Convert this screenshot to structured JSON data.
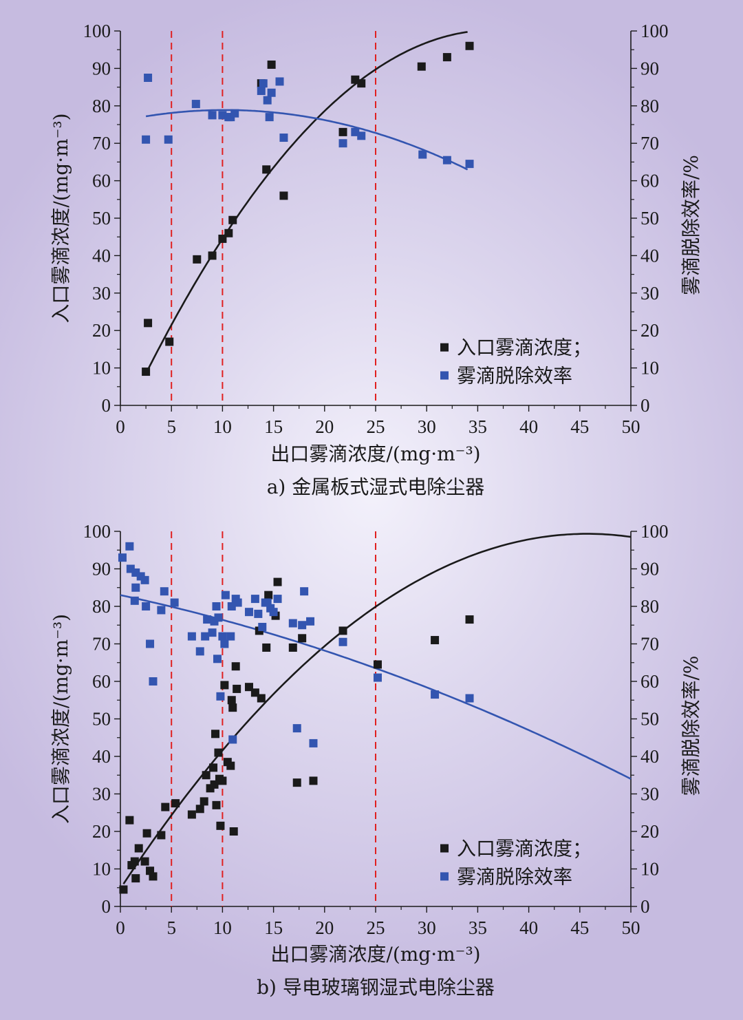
{
  "colors": {
    "series_inlet": "#1a1a1a",
    "series_efficiency": "#3355b0",
    "reference_line": "#e02020"
  },
  "chart_data": [
    {
      "type": "scatter",
      "caption": "a) 金属板式湿式电除尘器",
      "xlabel": "出口雾滴浓度/(mg·m⁻³)",
      "ylabel_left": "入口雾滴浓度/(mg·m⁻³)",
      "ylabel_right": "雾滴脱除效率/%",
      "xlim": [
        0,
        50
      ],
      "ylim": [
        0,
        100
      ],
      "x_ticks": [
        "0",
        "5",
        "10",
        "15",
        "20",
        "25",
        "30",
        "35",
        "40",
        "45",
        "50"
      ],
      "y_ticks": [
        "0",
        "10",
        "20",
        "30",
        "40",
        "50",
        "60",
        "70",
        "80",
        "90",
        "100"
      ],
      "reference_lines_x": [
        5,
        10,
        25
      ],
      "legend": {
        "items": [
          "入口雾滴浓度；",
          "雾滴脱除效率"
        ],
        "position": "bottom-right"
      },
      "series": [
        {
          "name": "入口雾滴浓度；",
          "color": "#1a1a1a",
          "points": [
            [
              2.5,
              9
            ],
            [
              2.7,
              22
            ],
            [
              4.8,
              17
            ],
            [
              7.5,
              39
            ],
            [
              9,
              40
            ],
            [
              10,
              44.5
            ],
            [
              10.6,
              46
            ],
            [
              11,
              49.5
            ],
            [
              13.8,
              86
            ],
            [
              14.3,
              63
            ],
            [
              14.8,
              91
            ],
            [
              16,
              56
            ],
            [
              21.8,
              73
            ],
            [
              23,
              87
            ],
            [
              23.6,
              86
            ],
            [
              29.5,
              90.5
            ],
            [
              32,
              93
            ],
            [
              34.2,
              96
            ]
          ],
          "fit": {
            "type": "quadratic",
            "x_range": [
              2.5,
              34
            ],
            "through": [
              [
                2.5,
                8.5
              ],
              [
                10,
                44.5
              ],
              [
                28,
                94.5
              ]
            ]
          }
        },
        {
          "name": "雾滴脱除效率",
          "color": "#3355b0",
          "points": [
            [
              2.5,
              71
            ],
            [
              2.7,
              87.5
            ],
            [
              4.7,
              71
            ],
            [
              7.4,
              80.5
            ],
            [
              9,
              77.5
            ],
            [
              10,
              77.5
            ],
            [
              10.6,
              77
            ],
            [
              10.8,
              77
            ],
            [
              11.2,
              78
            ],
            [
              13.8,
              84
            ],
            [
              14,
              86
            ],
            [
              14.4,
              81.5
            ],
            [
              14.6,
              77
            ],
            [
              14.8,
              83.5
            ],
            [
              15.6,
              86.5
            ],
            [
              16,
              71.5
            ],
            [
              21.8,
              70
            ],
            [
              23,
              73
            ],
            [
              23.6,
              72
            ],
            [
              29.6,
              67
            ],
            [
              32,
              65.5
            ],
            [
              34.2,
              64.5
            ]
          ],
          "fit": {
            "type": "quadratic",
            "x_range": [
              2.5,
              34
            ],
            "through": [
              [
                2.5,
                77.2
              ],
              [
                12,
                78.8
              ],
              [
                34,
                63
              ]
            ]
          }
        }
      ]
    },
    {
      "type": "scatter",
      "caption": "b) 导电玻璃钢湿式电除尘器",
      "xlabel": "出口雾滴浓度/(mg·m⁻³)",
      "ylabel_left": "入口雾滴浓度/(mg·m⁻³)",
      "ylabel_right": "雾滴脱除效率/%",
      "xlim": [
        0,
        50
      ],
      "ylim": [
        0,
        100
      ],
      "x_ticks": [
        "0",
        "5",
        "10",
        "15",
        "20",
        "25",
        "30",
        "35",
        "40",
        "45",
        "50"
      ],
      "y_ticks": [
        "0",
        "10",
        "20",
        "30",
        "40",
        "50",
        "60",
        "70",
        "80",
        "90",
        "100"
      ],
      "reference_lines_x": [
        5,
        10,
        25
      ],
      "legend": {
        "items": [
          "入口雾滴浓度；",
          "雾滴脱除效率"
        ],
        "position": "bottom-right"
      },
      "series": [
        {
          "name": "入口雾滴浓度；",
          "color": "#1a1a1a",
          "points": [
            [
              0.3,
              4.5
            ],
            [
              0.9,
              23
            ],
            [
              1.1,
              11
            ],
            [
              1.4,
              12
            ],
            [
              1.5,
              7.5
            ],
            [
              1.8,
              15.5
            ],
            [
              2.4,
              12
            ],
            [
              2.6,
              19.5
            ],
            [
              2.9,
              9.5
            ],
            [
              3.2,
              8
            ],
            [
              4,
              19
            ],
            [
              4.4,
              26.5
            ],
            [
              5.4,
              27.5
            ],
            [
              7,
              24.5
            ],
            [
              7.8,
              26
            ],
            [
              8.2,
              28
            ],
            [
              8.4,
              35
            ],
            [
              8.8,
              31.5
            ],
            [
              9.1,
              37
            ],
            [
              9.2,
              32.5
            ],
            [
              9.3,
              46
            ],
            [
              9.4,
              27
            ],
            [
              9.6,
              41
            ],
            [
              9.7,
              34
            ],
            [
              9.8,
              21.5
            ],
            [
              10,
              33.5
            ],
            [
              10.2,
              59
            ],
            [
              10.5,
              38.5
            ],
            [
              10.8,
              37.5
            ],
            [
              10.9,
              55
            ],
            [
              11,
              53
            ],
            [
              11.1,
              20
            ],
            [
              11.3,
              64
            ],
            [
              11.4,
              58
            ],
            [
              12.6,
              58.5
            ],
            [
              13.2,
              57
            ],
            [
              13.6,
              73.5
            ],
            [
              13.8,
              55.5
            ],
            [
              14.3,
              69
            ],
            [
              14.5,
              83
            ],
            [
              15.2,
              77.5
            ],
            [
              15.4,
              86.5
            ],
            [
              16.9,
              69
            ],
            [
              17.3,
              33
            ],
            [
              17.8,
              71.5
            ],
            [
              18.9,
              33.5
            ],
            [
              21.8,
              73.5
            ],
            [
              25.2,
              64.5
            ],
            [
              30.8,
              71
            ],
            [
              34.2,
              76.5
            ]
          ],
          "fit": {
            "type": "quadratic",
            "x_range": [
              0.3,
              50
            ],
            "through": [
              [
                0.3,
                6
              ],
              [
                10,
                41.6
              ],
              [
                43,
                99
              ]
            ]
          }
        },
        {
          "name": "雾滴脱除效率",
          "color": "#3355b0",
          "points": [
            [
              0.2,
              93
            ],
            [
              0.9,
              96
            ],
            [
              1,
              90
            ],
            [
              1.4,
              81.5
            ],
            [
              1.5,
              85
            ],
            [
              1.5,
              89
            ],
            [
              2,
              88
            ],
            [
              2.4,
              87
            ],
            [
              2.5,
              80
            ],
            [
              2.9,
              70
            ],
            [
              3.2,
              60
            ],
            [
              4,
              79
            ],
            [
              4.3,
              84
            ],
            [
              5.3,
              81
            ],
            [
              7,
              72
            ],
            [
              7.8,
              68
            ],
            [
              8.3,
              72
            ],
            [
              8.5,
              76.5
            ],
            [
              9,
              73
            ],
            [
              9.2,
              76
            ],
            [
              9.4,
              80
            ],
            [
              9.5,
              66
            ],
            [
              9.6,
              77
            ],
            [
              9.8,
              56
            ],
            [
              10,
              72
            ],
            [
              10.2,
              70
            ],
            [
              10.3,
              83
            ],
            [
              10.8,
              72
            ],
            [
              10.9,
              80
            ],
            [
              11,
              44.5
            ],
            [
              11.3,
              82
            ],
            [
              11.5,
              81
            ],
            [
              12.6,
              78.5
            ],
            [
              13.2,
              82
            ],
            [
              13.5,
              78
            ],
            [
              13.9,
              74.5
            ],
            [
              14.2,
              81
            ],
            [
              14.4,
              81
            ],
            [
              14.7,
              79.5
            ],
            [
              15,
              78.5
            ],
            [
              15.4,
              82
            ],
            [
              16.9,
              75.5
            ],
            [
              17.3,
              47.5
            ],
            [
              17.8,
              75
            ],
            [
              18,
              84
            ],
            [
              18.6,
              76
            ],
            [
              18.9,
              43.5
            ],
            [
              21.8,
              70.5
            ],
            [
              25.2,
              61
            ],
            [
              30.8,
              56.5
            ],
            [
              34.2,
              55.5
            ]
          ],
          "fit": {
            "type": "quadratic",
            "x_range": [
              0,
              50
            ],
            "through": [
              [
                0,
                83
              ],
              [
                25,
                63.5
              ],
              [
                50,
                34
              ]
            ]
          }
        }
      ]
    }
  ]
}
